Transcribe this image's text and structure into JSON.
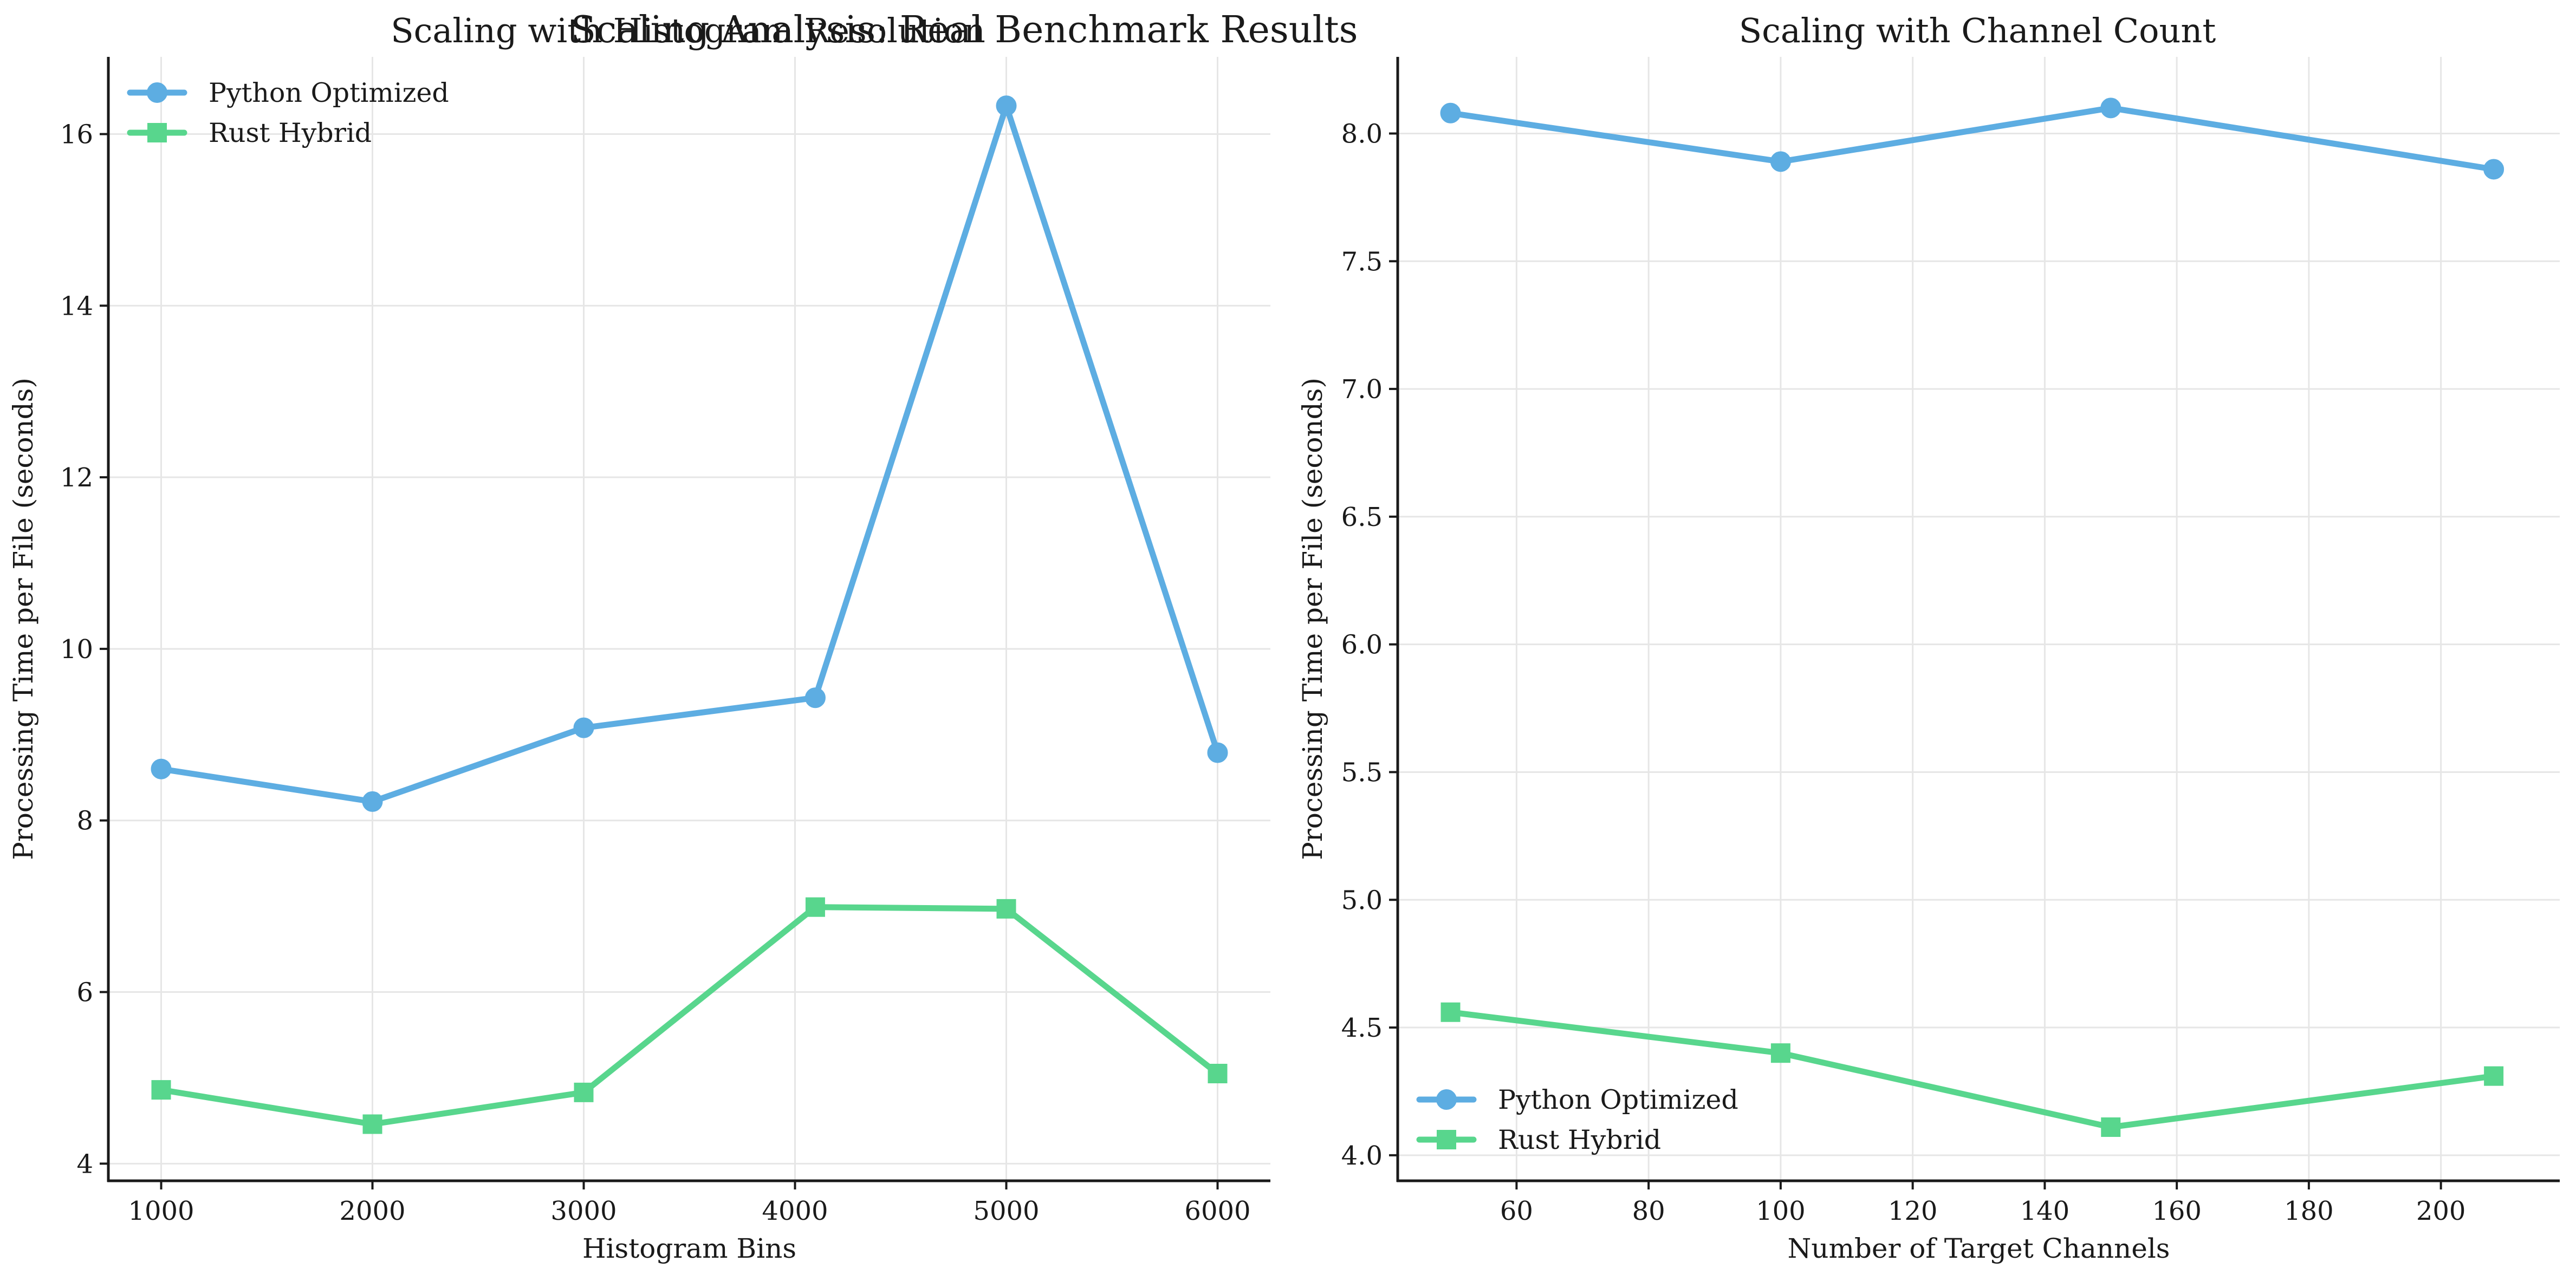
{
  "figure": {
    "suptitle": "Scaling Analysis: Real Benchmark Results"
  },
  "colors": {
    "python": "#5DADE2",
    "rust": "#58D68D"
  },
  "chart_data": [
    {
      "type": "line",
      "title": "Scaling with Histogram Resolution",
      "xlabel": "Histogram Bins",
      "ylabel": "Processing Time per File (seconds)",
      "xlim": [
        750,
        6250
      ],
      "ylim": [
        3.8,
        16.9
      ],
      "xticks": [
        1000,
        2000,
        3000,
        4000,
        5000,
        6000
      ],
      "yticks": [
        4,
        6,
        8,
        10,
        12,
        14,
        16
      ],
      "grid": true,
      "legend_position": "upper-left",
      "x": [
        1000,
        2000,
        3000,
        4096,
        5000,
        6000
      ],
      "series": [
        {
          "name": "Python Optimized",
          "marker": "circle",
          "values": [
            8.6,
            8.22,
            9.08,
            9.43,
            16.33,
            8.79
          ]
        },
        {
          "name": "Rust Hybrid",
          "marker": "square",
          "values": [
            4.86,
            4.46,
            4.83,
            6.99,
            6.97,
            5.05
          ]
        }
      ]
    },
    {
      "type": "line",
      "title": "Scaling with Channel Count",
      "xlabel": "Number of Target Channels",
      "ylabel": "Processing Time per File (seconds)",
      "xlim": [
        42,
        218
      ],
      "ylim": [
        3.9,
        8.3
      ],
      "xticks": [
        60,
        80,
        100,
        120,
        140,
        160,
        180,
        200
      ],
      "yticks": [
        4.0,
        4.5,
        5.0,
        5.5,
        6.0,
        6.5,
        7.0,
        7.5,
        8.0
      ],
      "grid": true,
      "legend_position": "lower-left",
      "x": [
        50,
        100,
        150,
        208
      ],
      "series": [
        {
          "name": "Python Optimized",
          "marker": "circle",
          "values": [
            8.08,
            7.89,
            8.1,
            7.86
          ]
        },
        {
          "name": "Rust Hybrid",
          "marker": "square",
          "values": [
            4.56,
            4.4,
            4.11,
            4.31
          ]
        }
      ]
    }
  ]
}
